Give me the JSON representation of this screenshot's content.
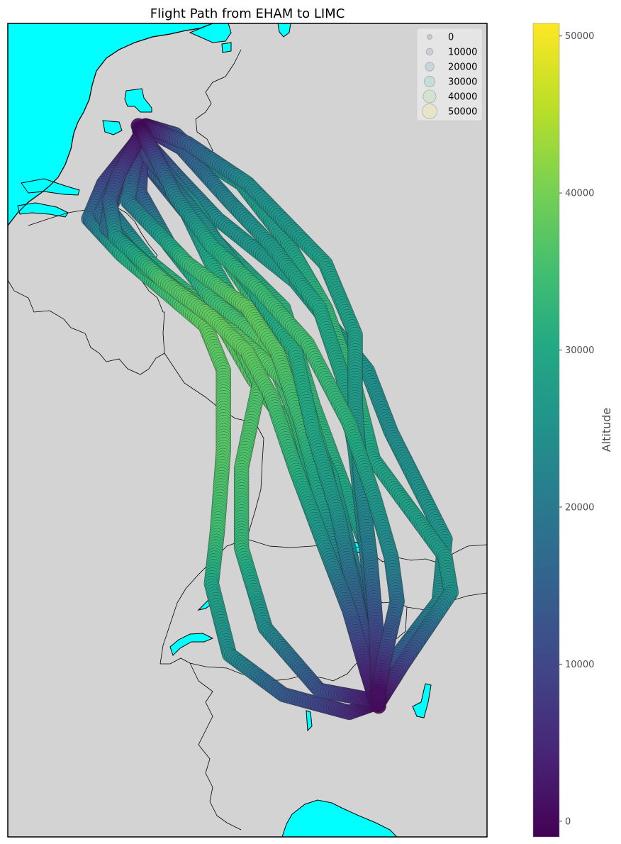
{
  "title": "Flight Path from EHAM to LIMC",
  "colors": {
    "water": "#00ffff",
    "land": "#d3d3d3",
    "border": "#000000",
    "legend_bg": "#e8e8e8"
  },
  "legend": {
    "title": "",
    "entries": [
      {
        "label": "0",
        "value": 0
      },
      {
        "label": "10000",
        "value": 10000
      },
      {
        "label": "20000",
        "value": 20000
      },
      {
        "label": "30000",
        "value": 30000
      },
      {
        "label": "40000",
        "value": 40000
      },
      {
        "label": "50000",
        "value": 50000
      }
    ]
  },
  "colorbar": {
    "label": "Altitude",
    "colormap": "viridis",
    "range": [
      -1000,
      50800
    ],
    "ticks": [
      {
        "label": "0",
        "value": 0
      },
      {
        "label": "10000",
        "value": 10000
      },
      {
        "label": "20000",
        "value": 20000
      },
      {
        "label": "30000",
        "value": 30000
      },
      {
        "label": "40000",
        "value": 40000
      },
      {
        "label": "50000",
        "value": 50000
      }
    ]
  },
  "map": {
    "origin": "EHAM",
    "destination": "LIMC",
    "lon_range": [
      2.6,
      10.6
    ],
    "lat_range": [
      44.35,
      53.5
    ],
    "flights": [
      {
        "waypoints": [
          [
            4.85,
            52.25,
            0
          ],
          [
            4.95,
            51.9,
            9000
          ],
          [
            5.55,
            51.4,
            20000
          ],
          [
            6.3,
            50.9,
            28000
          ],
          [
            7.2,
            50.3,
            32000
          ],
          [
            7.7,
            49.2,
            33000
          ],
          [
            8.2,
            48.3,
            30000
          ],
          [
            8.6,
            47.6,
            26000
          ],
          [
            8.72,
            46.9,
            16000
          ],
          [
            8.74,
            46.3,
            6000
          ],
          [
            8.75,
            45.85,
            1000
          ]
        ]
      },
      {
        "waypoints": [
          [
            4.85,
            52.28,
            0
          ],
          [
            4.6,
            51.95,
            8000
          ],
          [
            4.3,
            51.4,
            16000
          ],
          [
            5.0,
            50.8,
            30000
          ],
          [
            6.1,
            50.2,
            37000
          ],
          [
            6.7,
            49.5,
            37000
          ],
          [
            7.6,
            48.7,
            34000
          ],
          [
            8.2,
            47.6,
            27000
          ],
          [
            8.6,
            46.6,
            14000
          ],
          [
            8.75,
            45.9,
            2000
          ]
        ]
      },
      {
        "waypoints": [
          [
            4.8,
            52.32,
            0
          ],
          [
            5.0,
            52.1,
            8000
          ],
          [
            5.4,
            51.8,
            15000
          ],
          [
            6.1,
            51.3,
            24000
          ],
          [
            7.4,
            50.6,
            28000
          ],
          [
            8.6,
            49.6,
            25000
          ],
          [
            9.0,
            48.9,
            24000
          ],
          [
            9.9,
            47.7,
            26000
          ],
          [
            9.8,
            47.0,
            24000
          ],
          [
            9.0,
            46.3,
            12000
          ],
          [
            8.77,
            45.85,
            1000
          ]
        ]
      },
      {
        "waypoints": [
          [
            4.9,
            52.35,
            0
          ],
          [
            5.4,
            52.25,
            12000
          ],
          [
            5.8,
            52.0,
            20000
          ],
          [
            6.5,
            51.7,
            26000
          ],
          [
            7.3,
            51.0,
            28000
          ],
          [
            7.9,
            50.3,
            33000
          ],
          [
            8.4,
            49.4,
            33000
          ],
          [
            8.7,
            48.6,
            29000
          ],
          [
            9.9,
            47.5,
            27000
          ],
          [
            10.0,
            47.1,
            25000
          ],
          [
            9.2,
            46.3,
            10000
          ],
          [
            8.78,
            45.85,
            1000
          ]
        ]
      },
      {
        "waypoints": [
          [
            4.85,
            52.25,
            0
          ],
          [
            4.2,
            51.7,
            10000
          ],
          [
            3.95,
            51.3,
            17000
          ],
          [
            4.5,
            50.9,
            30000
          ],
          [
            5.9,
            50.1,
            38000
          ],
          [
            6.2,
            49.6,
            37000
          ],
          [
            6.2,
            48.7,
            37000
          ],
          [
            6.1,
            47.8,
            35000
          ],
          [
            6.0,
            47.2,
            30000
          ],
          [
            6.3,
            46.4,
            24000
          ],
          [
            7.2,
            45.95,
            14000
          ],
          [
            8.3,
            45.75,
            6000
          ],
          [
            8.72,
            45.85,
            1000
          ]
        ]
      },
      {
        "waypoints": [
          [
            4.85,
            52.27,
            0
          ],
          [
            4.5,
            51.85,
            9000
          ],
          [
            4.15,
            51.35,
            16000
          ],
          [
            4.9,
            50.75,
            32000
          ],
          [
            6.3,
            50.1,
            37000
          ],
          [
            6.8,
            49.45,
            36000
          ],
          [
            6.5,
            48.5,
            36000
          ],
          [
            6.5,
            47.6,
            33000
          ],
          [
            6.9,
            46.7,
            24000
          ],
          [
            7.8,
            46.0,
            12000
          ],
          [
            8.76,
            45.88,
            2000
          ]
        ]
      },
      {
        "waypoints": [
          [
            4.8,
            52.3,
            0
          ],
          [
            4.9,
            51.95,
            10000
          ],
          [
            5.5,
            51.5,
            22000
          ],
          [
            6.0,
            50.8,
            30000
          ],
          [
            6.6,
            50.1,
            33000
          ],
          [
            7.4,
            49.3,
            32000
          ],
          [
            8.0,
            48.4,
            29000
          ],
          [
            8.4,
            47.3,
            20000
          ],
          [
            8.65,
            46.5,
            10000
          ],
          [
            8.75,
            45.9,
            1000
          ]
        ]
      },
      {
        "waypoints": [
          [
            4.85,
            52.3,
            0
          ],
          [
            4.8,
            51.6,
            13000
          ],
          [
            5.3,
            51.0,
            25000
          ],
          [
            6.0,
            50.4,
            34000
          ],
          [
            6.9,
            49.9,
            37000
          ],
          [
            7.4,
            49.1,
            34000
          ],
          [
            7.8,
            48.1,
            28000
          ],
          [
            8.3,
            47.0,
            17000
          ],
          [
            8.7,
            46.2,
            6000
          ],
          [
            8.76,
            45.86,
            1000
          ]
        ]
      },
      {
        "waypoints": [
          [
            4.88,
            52.33,
            0
          ],
          [
            5.5,
            52.1,
            13000
          ],
          [
            6.3,
            51.5,
            22000
          ],
          [
            7.0,
            51.0,
            27000
          ],
          [
            7.8,
            50.3,
            30000
          ],
          [
            8.2,
            49.5,
            29000
          ],
          [
            8.4,
            48.7,
            27000
          ],
          [
            8.55,
            47.8,
            23000
          ],
          [
            8.7,
            46.9,
            14000
          ],
          [
            8.78,
            46.2,
            4000
          ],
          [
            8.79,
            45.82,
            0
          ]
        ]
      },
      {
        "waypoints": [
          [
            4.85,
            52.26,
            0
          ],
          [
            4.35,
            51.6,
            11000
          ],
          [
            4.25,
            51.2,
            17000
          ],
          [
            5.4,
            50.5,
            34000
          ],
          [
            6.4,
            50.0,
            37000
          ],
          [
            6.9,
            49.7,
            37000
          ],
          [
            7.6,
            49.2,
            35000
          ],
          [
            7.9,
            48.5,
            31000
          ],
          [
            8.2,
            47.5,
            24000
          ],
          [
            8.5,
            46.7,
            13000
          ],
          [
            8.74,
            45.9,
            1000
          ]
        ]
      },
      {
        "waypoints": [
          [
            4.83,
            52.28,
            0
          ],
          [
            5.2,
            51.85,
            13000
          ],
          [
            5.7,
            51.45,
            26000
          ],
          [
            6.4,
            50.7,
            33000
          ],
          [
            7.1,
            50.0,
            35000
          ],
          [
            7.5,
            49.2,
            33000
          ],
          [
            7.9,
            48.3,
            29000
          ],
          [
            8.35,
            47.3,
            20000
          ],
          [
            8.6,
            46.4,
            8000
          ],
          [
            8.72,
            45.95,
            1500
          ]
        ]
      },
      {
        "waypoints": [
          [
            4.85,
            52.3,
            0
          ],
          [
            4.7,
            51.85,
            11000
          ],
          [
            4.6,
            51.5,
            19000
          ],
          [
            5.6,
            50.8,
            33000
          ],
          [
            6.6,
            50.3,
            38000
          ],
          [
            7.1,
            49.8,
            37000
          ],
          [
            7.5,
            49.0,
            34000
          ],
          [
            7.85,
            48.1,
            28000
          ],
          [
            8.25,
            47.1,
            18000
          ],
          [
            8.6,
            46.3,
            7000
          ],
          [
            8.78,
            45.9,
            1000
          ]
        ]
      },
      {
        "waypoints": [
          [
            4.78,
            52.35,
            0
          ],
          [
            4.95,
            52.0,
            10000
          ],
          [
            5.8,
            51.3,
            24000
          ],
          [
            6.7,
            50.5,
            30000
          ],
          [
            7.4,
            49.8,
            31000
          ],
          [
            7.7,
            48.9,
            30000
          ],
          [
            8.1,
            48.0,
            26000
          ],
          [
            8.45,
            46.9,
            14000
          ],
          [
            8.7,
            46.1,
            4000
          ],
          [
            8.77,
            45.84,
            500
          ]
        ]
      },
      {
        "waypoints": [
          [
            4.85,
            52.29,
            0
          ],
          [
            4.45,
            51.8,
            9000
          ],
          [
            4.3,
            51.5,
            14000
          ],
          [
            4.4,
            51.1,
            25000
          ],
          [
            5.2,
            50.6,
            36000
          ],
          [
            6.0,
            50.2,
            38000
          ],
          [
            6.6,
            49.8,
            38000
          ],
          [
            7.0,
            49.3,
            36000
          ],
          [
            7.4,
            48.5,
            32000
          ],
          [
            7.9,
            47.6,
            25000
          ],
          [
            8.3,
            46.9,
            15000
          ],
          [
            8.6,
            46.2,
            5000
          ],
          [
            8.76,
            45.85,
            1000
          ]
        ]
      },
      {
        "waypoints": [
          [
            4.9,
            52.34,
            0
          ],
          [
            5.6,
            52.15,
            14000
          ],
          [
            6.6,
            51.7,
            24000
          ],
          [
            7.9,
            50.8,
            28000
          ],
          [
            8.4,
            50.0,
            28000
          ],
          [
            8.4,
            49.2,
            27000
          ],
          [
            8.5,
            48.3,
            24000
          ],
          [
            8.65,
            47.5,
            20000
          ],
          [
            8.75,
            46.7,
            11000
          ],
          [
            8.78,
            46.1,
            3000
          ],
          [
            8.79,
            45.85,
            500
          ]
        ]
      },
      {
        "waypoints": [
          [
            4.83,
            52.3,
            0
          ],
          [
            5.1,
            51.95,
            11000
          ],
          [
            5.4,
            51.55,
            21000
          ],
          [
            6.0,
            51.0,
            30000
          ],
          [
            6.8,
            50.5,
            34000
          ],
          [
            7.6,
            49.9,
            35000
          ],
          [
            8.3,
            49.0,
            32000
          ],
          [
            8.7,
            48.2,
            27000
          ],
          [
            9.0,
            47.5,
            23000
          ],
          [
            9.1,
            47.0,
            18000
          ],
          [
            8.9,
            46.4,
            9000
          ],
          [
            8.78,
            45.95,
            1000
          ]
        ]
      }
    ]
  }
}
